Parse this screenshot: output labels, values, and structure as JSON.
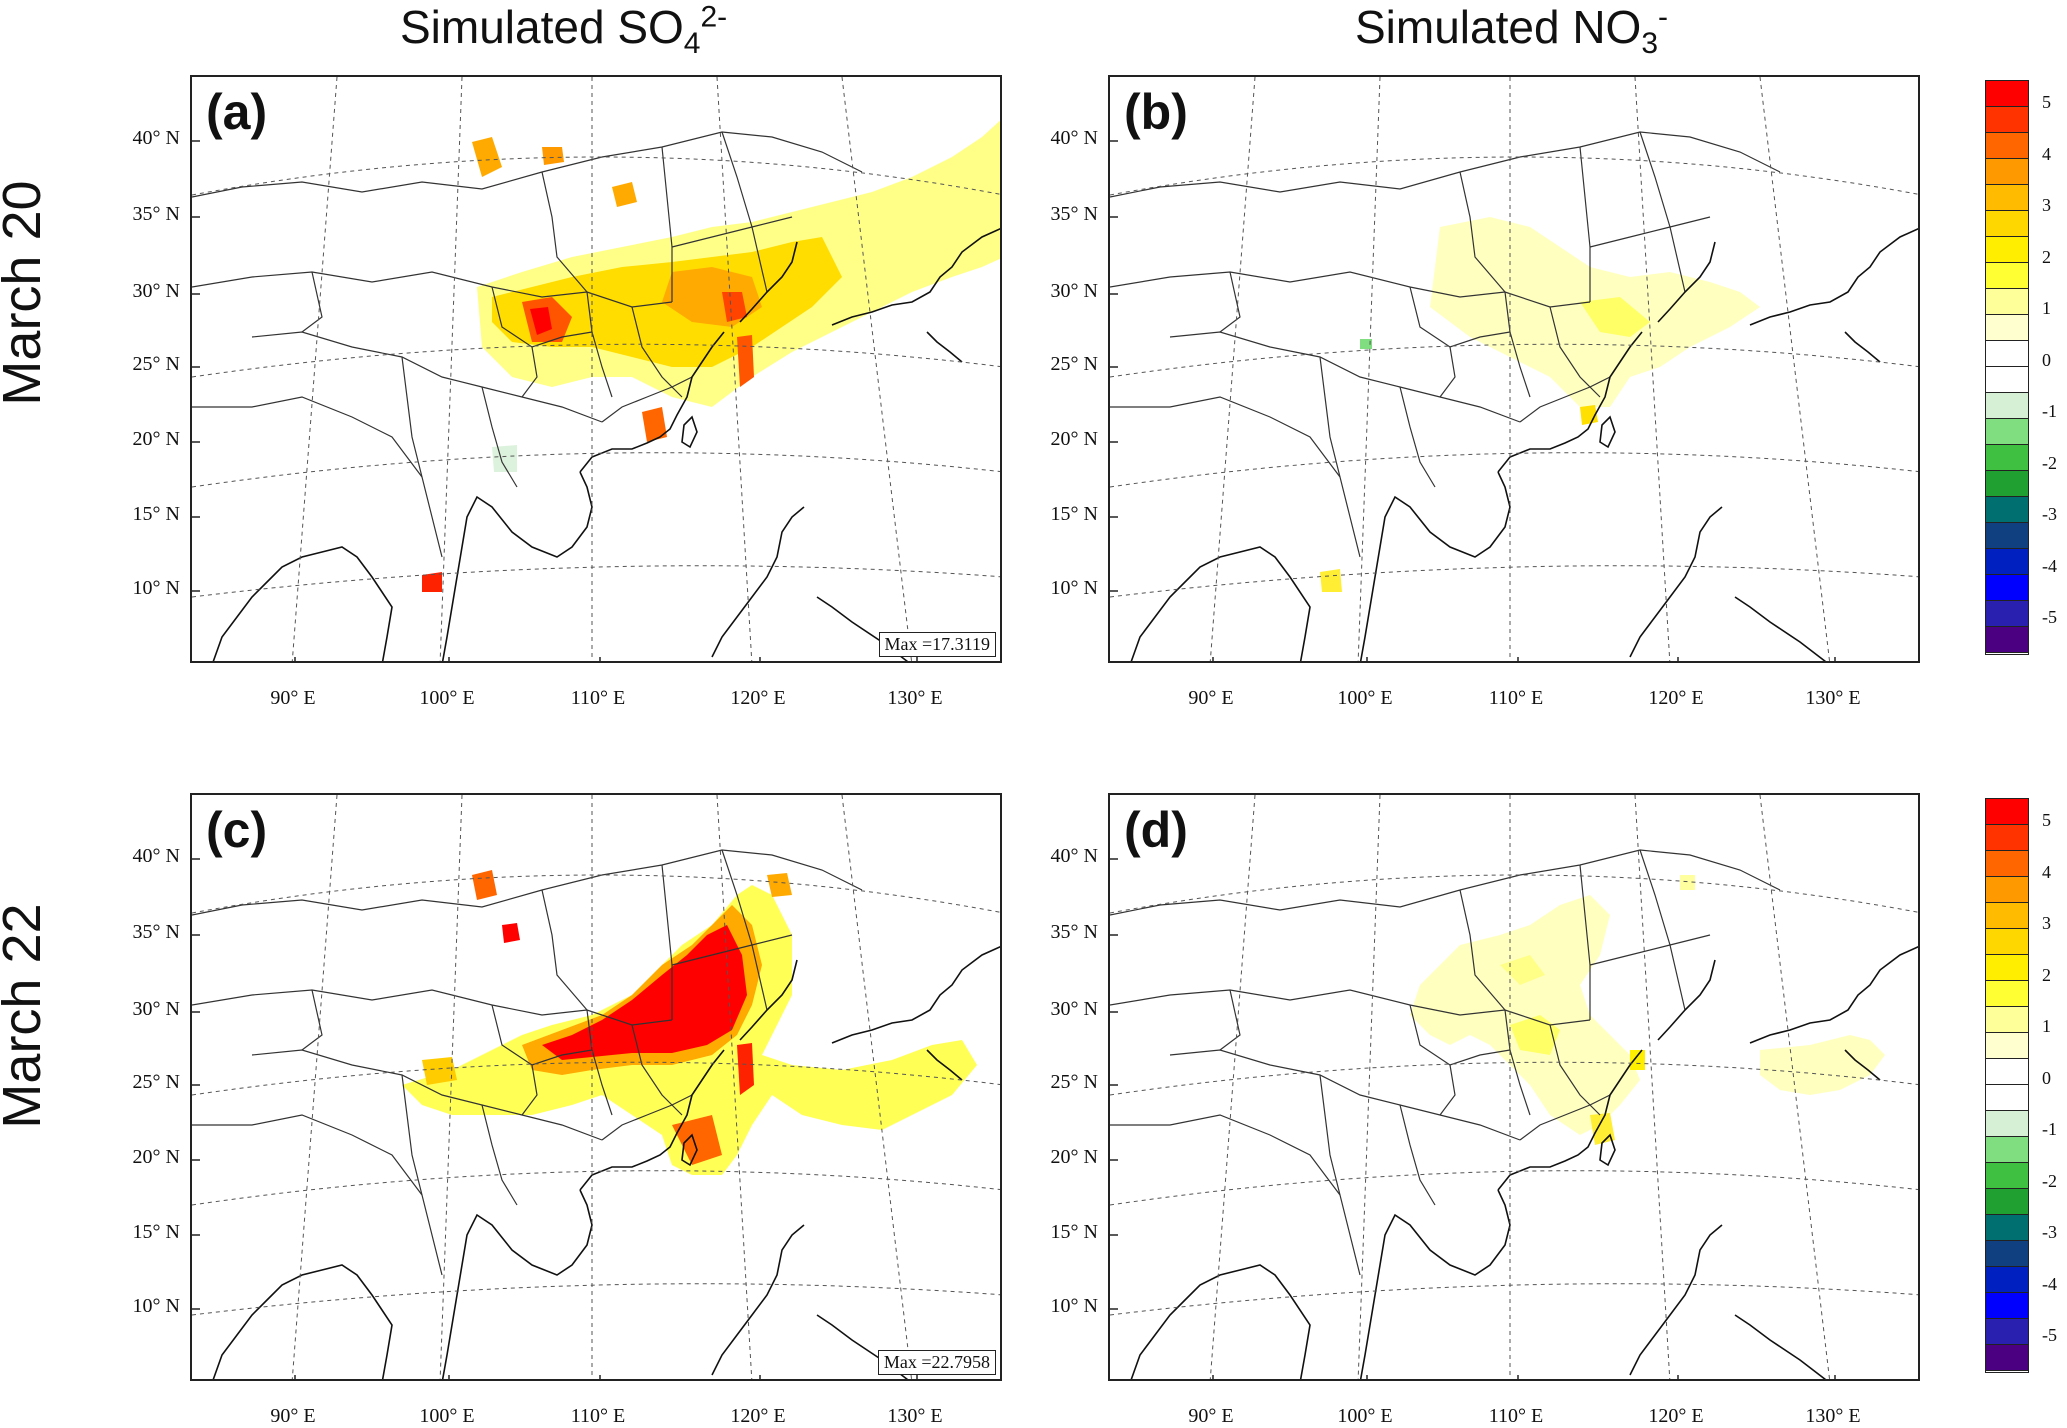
{
  "figure": {
    "columns": [
      {
        "pre": "Simulated SO",
        "sub": "4",
        "sup": "2-"
      },
      {
        "pre": "Simulated NO",
        "sub": "3",
        "sup": "-"
      }
    ],
    "rows": [
      "March 20",
      "March 22"
    ],
    "panels": [
      {
        "label": "(a)",
        "max": "Max =17.3119"
      },
      {
        "label": "(b)",
        "max": ""
      },
      {
        "label": "(c)",
        "max": "Max =22.7958"
      },
      {
        "label": "(d)",
        "max": ""
      }
    ],
    "lat_labels": [
      "40° N",
      "35° N",
      "30° N",
      "25° N",
      "20° N",
      "15° N",
      "10° N"
    ],
    "lon_labels": [
      "90° E",
      "100° E",
      "110° E",
      "120° E",
      "130° E"
    ]
  },
  "colorbar": {
    "labels": [
      "5",
      "4",
      "3",
      "2",
      "1",
      "0",
      "-1",
      "-2",
      "-3",
      "-4",
      "-5"
    ],
    "colors": [
      "#ff0000",
      "#ff3300",
      "#ff6600",
      "#ff9900",
      "#ffbb00",
      "#ffd700",
      "#ffee00",
      "#ffff33",
      "#ffff99",
      "#ffffd0",
      "#ffffff",
      "#ffffff",
      "#d5f0d5",
      "#80dd80",
      "#40c040",
      "#20a030",
      "#006f70",
      "#104080",
      "#0020c0",
      "#0000ff",
      "#2a20b0",
      "#4b0082"
    ]
  }
}
